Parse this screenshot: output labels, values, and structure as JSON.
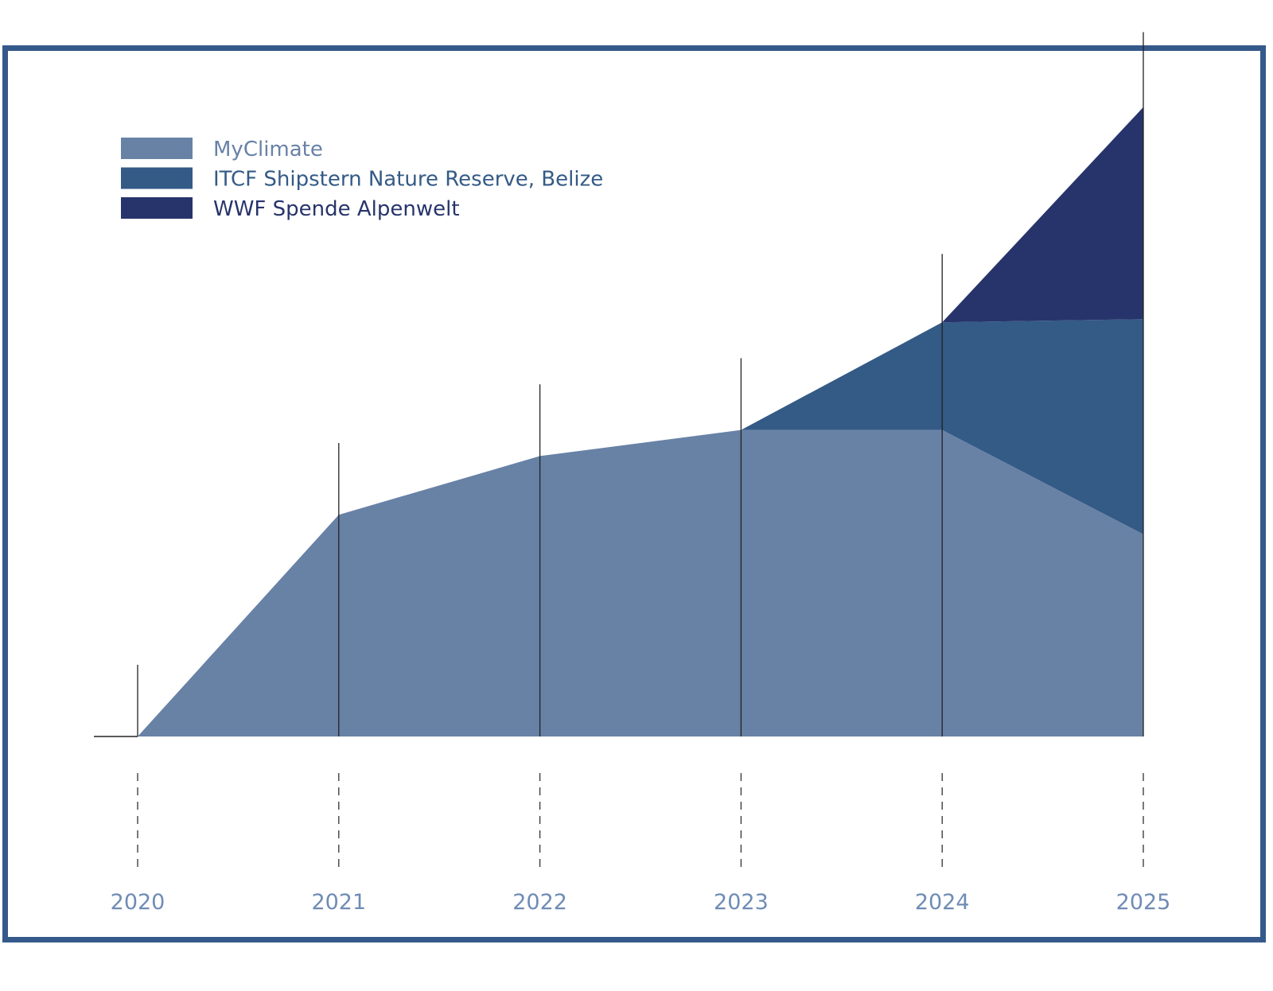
{
  "chart_data": {
    "type": "area",
    "stacked": true,
    "title": "",
    "xlabel": "",
    "ylabel": "",
    "categories": [
      "2020",
      "2021",
      "2022",
      "2023",
      "2024",
      "2025"
    ],
    "ylim": [
      0,
      100
    ],
    "grid": false,
    "legend_position": "top-left",
    "series": [
      {
        "name": "MyClimate",
        "color": "#6882a6",
        "values": [
          0,
          34,
          43,
          47,
          47,
          31
        ]
      },
      {
        "name": "ITCF Shipstern Nature Reserve, Belize",
        "color": "#345a86",
        "values": [
          0,
          0,
          0,
          0,
          16.5,
          33
        ]
      },
      {
        "name": "WWF Spende Alpenwelt",
        "color": "#27346b",
        "values": [
          0,
          0,
          0,
          0,
          0,
          32.5
        ]
      }
    ],
    "year_markers": [
      11,
      45,
      54,
      58,
      74,
      108
    ]
  },
  "colors": {
    "frame": "#35598a",
    "axis": "#222222",
    "tick_label": "#6f8cb4"
  }
}
